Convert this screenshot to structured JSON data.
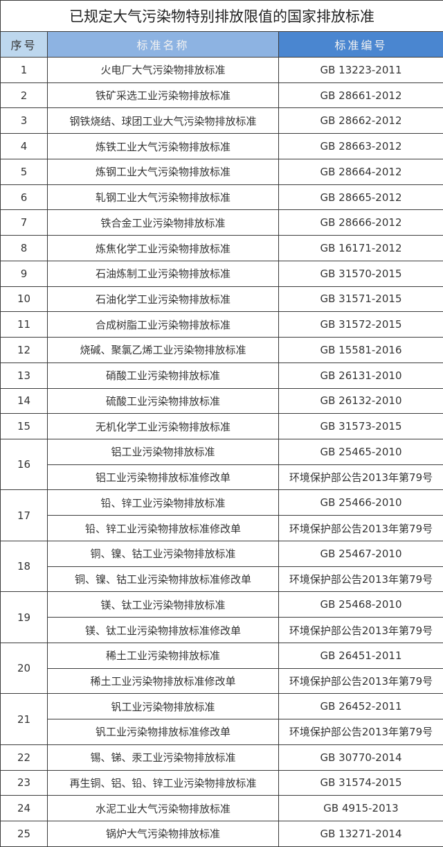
{
  "title": "已规定大气污染物特别排放限值的国家排放标准",
  "header": {
    "no": "序号",
    "name": "标准名称",
    "code": "标准编号"
  },
  "colors": {
    "header_col1": "#bdd7ee",
    "header_col2": "#8db3e2",
    "header_col3": "#4a86d0"
  },
  "rows": [
    {
      "no": "1",
      "items": [
        {
          "name": "火电厂大气污染物排放标准",
          "code": "GB 13223-2011"
        }
      ]
    },
    {
      "no": "2",
      "items": [
        {
          "name": "铁矿采选工业污染物排放标准",
          "code": "GB 28661-2012"
        }
      ]
    },
    {
      "no": "3",
      "items": [
        {
          "name": "钢铁烧结、球团工业大气污染物排放标准",
          "code": "GB 28662-2012"
        }
      ]
    },
    {
      "no": "4",
      "items": [
        {
          "name": "炼铁工业大气污染物排放标准",
          "code": "GB 28663-2012"
        }
      ]
    },
    {
      "no": "5",
      "items": [
        {
          "name": "炼钢工业大气污染物排放标准",
          "code": "GB 28664-2012"
        }
      ]
    },
    {
      "no": "6",
      "items": [
        {
          "name": "轧钢工业大气污染物排放标准",
          "code": "GB 28665-2012"
        }
      ]
    },
    {
      "no": "7",
      "items": [
        {
          "name": "铁合金工业污染物排放标准",
          "code": "GB 28666-2012"
        }
      ]
    },
    {
      "no": "8",
      "items": [
        {
          "name": "炼焦化学工业污染物排放标准",
          "code": "GB 16171-2012"
        }
      ]
    },
    {
      "no": "9",
      "items": [
        {
          "name": "石油炼制工业污染物排放标准",
          "code": "GB 31570-2015"
        }
      ]
    },
    {
      "no": "10",
      "items": [
        {
          "name": "石油化学工业污染物排放标准",
          "code": "GB 31571-2015"
        }
      ]
    },
    {
      "no": "11",
      "items": [
        {
          "name": "合成树脂工业污染物排放标准",
          "code": "GB 31572-2015"
        }
      ]
    },
    {
      "no": "12",
      "items": [
        {
          "name": "烧碱、聚氯乙烯工业污染物排放标准",
          "code": "GB 15581-2016"
        }
      ]
    },
    {
      "no": "13",
      "items": [
        {
          "name": "硝酸工业污染物排放标准",
          "code": "GB 26131-2010"
        }
      ]
    },
    {
      "no": "14",
      "items": [
        {
          "name": "硫酸工业污染物排放标准",
          "code": "GB 26132-2010"
        }
      ]
    },
    {
      "no": "15",
      "items": [
        {
          "name": "无机化学工业污染物排放标准",
          "code": "GB 31573-2015"
        }
      ]
    },
    {
      "no": "16",
      "items": [
        {
          "name": "铝工业污染物排放标准",
          "code": "GB 25465-2010"
        },
        {
          "name": "铝工业污染物排放标准修改单",
          "code": "环境保护部公告2013年第79号"
        }
      ]
    },
    {
      "no": "17",
      "items": [
        {
          "name": "铅、锌工业污染物排放标准",
          "code": "GB 25466-2010"
        },
        {
          "name": "铅、锌工业污染物排放标准修改单",
          "code": "环境保护部公告2013年第79号"
        }
      ]
    },
    {
      "no": "18",
      "items": [
        {
          "name": "铜、镍、钴工业污染物排放标准",
          "code": "GB 25467-2010"
        },
        {
          "name": "铜、镍、钴工业污染物排放标准修改单",
          "code": "环境保护部公告2013年第79号"
        }
      ]
    },
    {
      "no": "19",
      "items": [
        {
          "name": "镁、钛工业污染物排放标准",
          "code": "GB 25468-2010"
        },
        {
          "name": "镁、钛工业污染物排放标准修改单",
          "code": "环境保护部公告2013年第79号"
        }
      ]
    },
    {
      "no": "20",
      "items": [
        {
          "name": "稀土工业污染物排放标准",
          "code": "GB 26451-2011"
        },
        {
          "name": "稀土工业污染物排放标准修改单",
          "code": "环境保护部公告2013年第79号"
        }
      ]
    },
    {
      "no": "21",
      "items": [
        {
          "name": "钒工业污染物排放标准",
          "code": "GB 26452-2011"
        },
        {
          "name": "钒工业污染物排放标准修改单",
          "code": "环境保护部公告2013年第79号"
        }
      ]
    },
    {
      "no": "22",
      "items": [
        {
          "name": "锡、锑、汞工业污染物排放标准",
          "code": "GB 30770-2014"
        }
      ]
    },
    {
      "no": "23",
      "items": [
        {
          "name": "再生铜、铝、铅、锌工业污染物排放标准",
          "code": "GB 31574-2015"
        }
      ]
    },
    {
      "no": "24",
      "items": [
        {
          "name": "水泥工业大气污染物排放标准",
          "code": "GB 4915-2013"
        }
      ]
    },
    {
      "no": "25",
      "items": [
        {
          "name": "锅炉大气污染物排放标准",
          "code": "GB 13271-2014"
        }
      ]
    }
  ]
}
